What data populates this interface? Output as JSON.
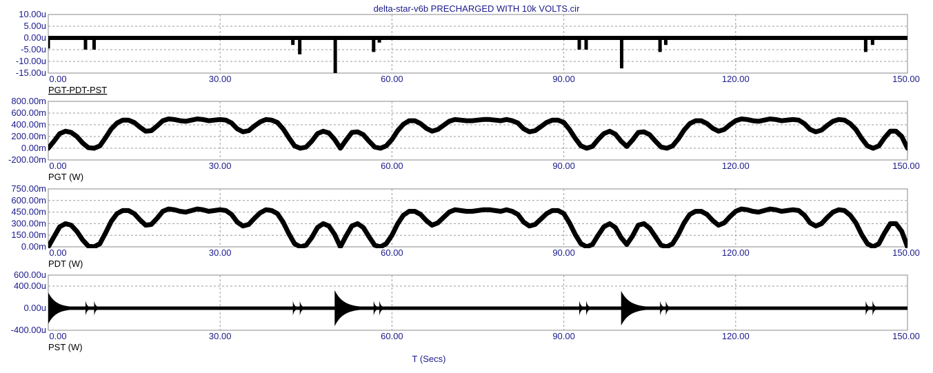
{
  "title": "delta-star-v6b PRECHARGED WITH 10k VOLTS.cir",
  "x_axis_label": "T (Secs)",
  "colors": {
    "trace": "#000000",
    "axis_text": "#1a1a8c",
    "grid": "#9a9a9a",
    "frame": "#8a8a8a"
  },
  "chart_data": [
    {
      "type": "line",
      "name": "PGT-PDT-PST",
      "underlined_label": "PGT-PDT-PST",
      "xlim": [
        0,
        150
      ],
      "x_ticks": [
        "0.00",
        "30.00",
        "60.00",
        "90.00",
        "120.00",
        "150.00"
      ],
      "ylim": [
        -15,
        10
      ],
      "y_ticks": [
        {
          "v": 10,
          "label": "10.00u"
        },
        {
          "v": 5,
          "label": "5.00u"
        },
        {
          "v": 0,
          "label": "0.00u"
        },
        {
          "v": -5,
          "label": "-5.00u"
        },
        {
          "v": -10,
          "label": "-10.00u"
        },
        {
          "v": -15,
          "label": "-15.00u"
        }
      ],
      "baseline": 0,
      "band": 1.2,
      "spikes": [
        {
          "x": 0.0,
          "depth": -4.5
        },
        {
          "x": 6.5,
          "depth": -5.0
        },
        {
          "x": 8.0,
          "depth": -5.0
        },
        {
          "x": 42.7,
          "depth": -3.0
        },
        {
          "x": 43.9,
          "depth": -7.0
        },
        {
          "x": 50.1,
          "depth": -15.0
        },
        {
          "x": 56.8,
          "depth": -6.0
        },
        {
          "x": 57.8,
          "depth": -2.0
        },
        {
          "x": 92.7,
          "depth": -5.0
        },
        {
          "x": 93.9,
          "depth": -5.0
        },
        {
          "x": 100.1,
          "depth": -13.0
        },
        {
          "x": 106.8,
          "depth": -6.0
        },
        {
          "x": 107.8,
          "depth": -3.0
        },
        {
          "x": 142.7,
          "depth": -6.0
        },
        {
          "x": 143.9,
          "depth": -3.0
        }
      ]
    },
    {
      "type": "line",
      "name": "PGT (W)",
      "label": "PGT (W)",
      "xlim": [
        0,
        150
      ],
      "x_ticks": [
        "0.00",
        "30.00",
        "60.00",
        "90.00",
        "120.00",
        "150.00"
      ],
      "ylim": [
        -200,
        800
      ],
      "y_ticks": [
        {
          "v": 800,
          "label": "800.00m"
        },
        {
          "v": 600,
          "label": "600.00m"
        },
        {
          "v": 400,
          "label": "400.00m"
        },
        {
          "v": 200,
          "label": "200.00m"
        },
        {
          "v": 0,
          "label": "0.00m"
        },
        {
          "v": -200,
          "label": "-200.00m"
        }
      ],
      "x": [
        0,
        1,
        2,
        3,
        4,
        5,
        6,
        7,
        8,
        9,
        10,
        11,
        12,
        13,
        14,
        15,
        16,
        17,
        18,
        19,
        20,
        21,
        22,
        23,
        24,
        25,
        26,
        27,
        28,
        29,
        30,
        31,
        32,
        33,
        34,
        35,
        36,
        37,
        38,
        39,
        40,
        41,
        42,
        43,
        44,
        45,
        46,
        47,
        48,
        49,
        50,
        51,
        52,
        53,
        54,
        55,
        56,
        57,
        58,
        59,
        60,
        61,
        62,
        63,
        64,
        65,
        66,
        67,
        68,
        69,
        70,
        71,
        72,
        73,
        74,
        75,
        76,
        77,
        78,
        79,
        80,
        81,
        82,
        83,
        84,
        85,
        86,
        87,
        88,
        89,
        90,
        91,
        92,
        93,
        94,
        95,
        96,
        97,
        98,
        99,
        100,
        101,
        102,
        103,
        104,
        105,
        106,
        107,
        108,
        109,
        110,
        111,
        112,
        113,
        114,
        115,
        116,
        117,
        118,
        119,
        120,
        121,
        122,
        123,
        124,
        125,
        126,
        127,
        128,
        129,
        130,
        131,
        132,
        133,
        134,
        135,
        136,
        137,
        138,
        139,
        140,
        141,
        142,
        143,
        144,
        145,
        146,
        147,
        148,
        149,
        150
      ],
      "y": [
        0,
        120,
        250,
        290,
        270,
        200,
        90,
        10,
        0,
        40,
        180,
        330,
        430,
        480,
        480,
        440,
        360,
        290,
        300,
        380,
        470,
        500,
        490,
        470,
        460,
        480,
        500,
        490,
        470,
        480,
        490,
        480,
        430,
        330,
        280,
        300,
        380,
        450,
        490,
        480,
        440,
        330,
        180,
        40,
        0,
        20,
        120,
        250,
        290,
        260,
        150,
        0,
        140,
        270,
        280,
        230,
        120,
        20,
        0,
        40,
        150,
        300,
        410,
        470,
        470,
        420,
        340,
        290,
        320,
        390,
        460,
        490,
        480,
        470,
        470,
        480,
        490,
        490,
        480,
        470,
        490,
        470,
        430,
        330,
        280,
        300,
        370,
        440,
        480,
        480,
        440,
        320,
        170,
        40,
        0,
        30,
        150,
        250,
        290,
        240,
        120,
        30,
        140,
        270,
        280,
        230,
        120,
        20,
        0,
        40,
        160,
        310,
        420,
        470,
        470,
        420,
        340,
        290,
        320,
        400,
        470,
        500,
        490,
        470,
        460,
        480,
        500,
        490,
        470,
        480,
        490,
        480,
        420,
        320,
        280,
        310,
        390,
        460,
        490,
        480,
        420,
        320,
        170,
        40,
        0,
        40,
        180,
        290,
        290,
        200,
        0
      ],
      "band": 16
    },
    {
      "type": "line",
      "name": "PDT (W)",
      "label": "PDT (W)",
      "xlim": [
        0,
        150
      ],
      "x_ticks": [
        "0.00",
        "30.00",
        "60.00",
        "90.00",
        "120.00",
        "150.00"
      ],
      "ylim": [
        0,
        750
      ],
      "y_ticks": [
        {
          "v": 750,
          "label": "750.00m"
        },
        {
          "v": 600,
          "label": "600.00m"
        },
        {
          "v": 450,
          "label": "450.00m"
        },
        {
          "v": 300,
          "label": "300.00m"
        },
        {
          "v": 150,
          "label": "150.00m"
        },
        {
          "v": 0,
          "label": "0.00m"
        }
      ],
      "x": [
        0,
        1,
        2,
        3,
        4,
        5,
        6,
        7,
        8,
        9,
        10,
        11,
        12,
        13,
        14,
        15,
        16,
        17,
        18,
        19,
        20,
        21,
        22,
        23,
        24,
        25,
        26,
        27,
        28,
        29,
        30,
        31,
        32,
        33,
        34,
        35,
        36,
        37,
        38,
        39,
        40,
        41,
        42,
        43,
        44,
        45,
        46,
        47,
        48,
        49,
        50,
        51,
        52,
        53,
        54,
        55,
        56,
        57,
        58,
        59,
        60,
        61,
        62,
        63,
        64,
        65,
        66,
        67,
        68,
        69,
        70,
        71,
        72,
        73,
        74,
        75,
        76,
        77,
        78,
        79,
        80,
        81,
        82,
        83,
        84,
        85,
        86,
        87,
        88,
        89,
        90,
        91,
        92,
        93,
        94,
        95,
        96,
        97,
        98,
        99,
        100,
        101,
        102,
        103,
        104,
        105,
        106,
        107,
        108,
        109,
        110,
        111,
        112,
        113,
        114,
        115,
        116,
        117,
        118,
        119,
        120,
        121,
        122,
        123,
        124,
        125,
        126,
        127,
        128,
        129,
        130,
        131,
        132,
        133,
        134,
        135,
        136,
        137,
        138,
        139,
        140,
        141,
        142,
        143,
        144,
        145,
        146,
        147,
        148,
        149,
        150
      ],
      "y": [
        0,
        130,
        260,
        300,
        280,
        200,
        90,
        10,
        0,
        40,
        180,
        330,
        430,
        470,
        470,
        430,
        350,
        280,
        290,
        370,
        460,
        490,
        480,
        460,
        450,
        470,
        490,
        480,
        460,
        470,
        480,
        470,
        420,
        320,
        270,
        290,
        370,
        440,
        480,
        470,
        430,
        320,
        170,
        40,
        0,
        20,
        120,
        250,
        300,
        270,
        160,
        0,
        140,
        270,
        300,
        250,
        130,
        20,
        0,
        40,
        150,
        300,
        410,
        460,
        460,
        420,
        340,
        280,
        310,
        380,
        450,
        480,
        470,
        460,
        460,
        470,
        480,
        480,
        470,
        460,
        480,
        460,
        420,
        320,
        270,
        290,
        360,
        430,
        470,
        470,
        430,
        310,
        160,
        40,
        0,
        30,
        150,
        260,
        300,
        250,
        120,
        30,
        140,
        280,
        300,
        240,
        130,
        20,
        0,
        40,
        160,
        310,
        420,
        460,
        460,
        420,
        340,
        280,
        310,
        390,
        460,
        490,
        480,
        460,
        450,
        470,
        490,
        480,
        460,
        470,
        480,
        470,
        410,
        310,
        270,
        300,
        380,
        450,
        480,
        470,
        410,
        310,
        160,
        40,
        0,
        40,
        180,
        300,
        300,
        200,
        0
      ],
      "band": 14
    },
    {
      "type": "line",
      "name": "PST (W)",
      "label": "PST (W)",
      "xlim": [
        0,
        150
      ],
      "x_ticks": [
        "0.00",
        "30.00",
        "60.00",
        "90.00",
        "120.00",
        "150.00"
      ],
      "ylim": [
        -400,
        600
      ],
      "y_ticks": [
        {
          "v": 600,
          "label": "600.00u"
        },
        {
          "v": 400,
          "label": "400.00u"
        },
        {
          "v": 0,
          "label": "0.00u"
        },
        {
          "v": -400,
          "label": "-400.00u"
        }
      ],
      "baseline": 0,
      "band": 12,
      "bursts": [
        {
          "x": 0.0,
          "amp": 270,
          "decay": 4.0
        },
        {
          "x": 6.5,
          "amp": 120,
          "decay": 0.8
        },
        {
          "x": 8.0,
          "amp": 120,
          "decay": 0.8
        },
        {
          "x": 42.7,
          "amp": 120,
          "decay": 0.8
        },
        {
          "x": 43.9,
          "amp": 120,
          "decay": 0.8
        },
        {
          "x": 50.0,
          "amp": 310,
          "decay": 4.5
        },
        {
          "x": 56.8,
          "amp": 120,
          "decay": 0.8
        },
        {
          "x": 57.8,
          "amp": 120,
          "decay": 0.8
        },
        {
          "x": 92.7,
          "amp": 120,
          "decay": 0.8
        },
        {
          "x": 93.9,
          "amp": 120,
          "decay": 0.8
        },
        {
          "x": 100.0,
          "amp": 300,
          "decay": 4.5
        },
        {
          "x": 106.8,
          "amp": 120,
          "decay": 0.8
        },
        {
          "x": 107.8,
          "amp": 120,
          "decay": 0.8
        },
        {
          "x": 142.7,
          "amp": 120,
          "decay": 0.8
        },
        {
          "x": 143.9,
          "amp": 120,
          "decay": 0.8
        }
      ]
    }
  ]
}
